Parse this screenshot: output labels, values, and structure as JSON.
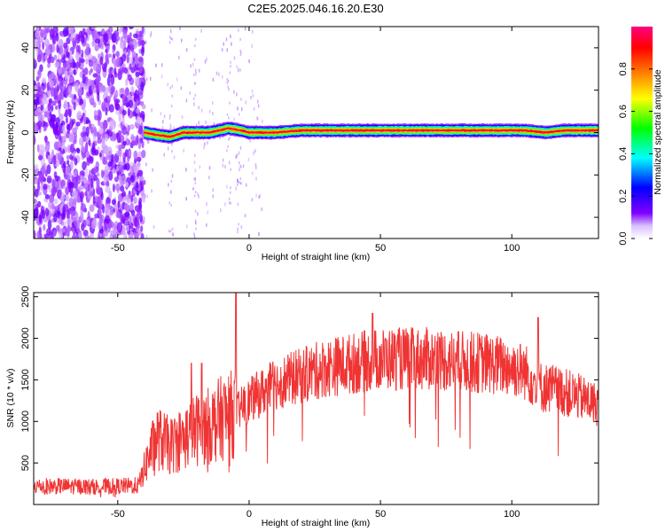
{
  "title": "C2E5.2025.046.16.20.E30",
  "chart_data": [
    {
      "type": "heatmap",
      "title": "C2E5.2025.046.16.20.E30",
      "xlabel": "Height of straight line (km)",
      "ylabel": "Frequency (Hz)",
      "xlim": [
        -82,
        133
      ],
      "ylim": [
        -50,
        50
      ],
      "xticks": [
        -50,
        0,
        50,
        100
      ],
      "yticks": [
        -40,
        -20,
        0,
        20,
        40
      ],
      "grid": false,
      "colorbar": {
        "label": "Normalized spectral amplitude",
        "range": [
          0.0,
          1.0
        ],
        "ticks": [
          "0.0",
          "0.2",
          "0.4",
          "0.6",
          "0.8"
        ],
        "colormap": [
          "#ffffff",
          "#8000ff",
          "#0000ff",
          "#00ffff",
          "#00ff00",
          "#ffff00",
          "#ff8000",
          "#ff0000",
          "#ff0080"
        ]
      },
      "noise_region_x": [
        -82,
        -40
      ],
      "signal_band": {
        "x_start": -40,
        "x_end": 133,
        "center_freq_hz": [
          [
            -40,
            0
          ],
          [
            -36,
            -1
          ],
          [
            -30,
            -2
          ],
          [
            -25,
            0
          ],
          [
            -15,
            0
          ],
          [
            -8,
            2
          ],
          [
            -3,
            1
          ],
          [
            0,
            0
          ],
          [
            10,
            0
          ],
          [
            20,
            1
          ],
          [
            40,
            1
          ],
          [
            60,
            1
          ],
          [
            80,
            1
          ],
          [
            100,
            1
          ],
          [
            105,
            1
          ],
          [
            113,
            0
          ],
          [
            120,
            1
          ],
          [
            133,
            1
          ]
        ],
        "peak_amplitude": 0.95
      },
      "spikes_x": [
        -30,
        -21,
        -8,
        -4
      ]
    },
    {
      "type": "line",
      "xlabel": "Height of straight line (km)",
      "ylabel": "SNR (10 * v/v)",
      "xlim": [
        -82,
        133
      ],
      "ylim": [
        0,
        2550
      ],
      "xticks": [
        -50,
        0,
        50,
        100
      ],
      "yticks": [
        500,
        1000,
        1500,
        2000,
        2500
      ],
      "grid": false,
      "color": "#f03434",
      "series": [
        {
          "x": [
            -82,
            -70,
            -60,
            -50,
            -42,
            -38,
            -35,
            -30,
            -25,
            -20,
            -15,
            -10,
            -5,
            0,
            5,
            10,
            20,
            30,
            40,
            50,
            60,
            70,
            80,
            90,
            100,
            105,
            108,
            112,
            115,
            120,
            125,
            133
          ],
          "values": [
            220,
            220,
            215,
            220,
            230,
            600,
            800,
            700,
            800,
            900,
            950,
            1050,
            1100,
            1250,
            1350,
            1450,
            1550,
            1650,
            1700,
            1750,
            1750,
            1750,
            1720,
            1700,
            1650,
            1600,
            1500,
            1400,
            1400,
            1350,
            1300,
            1200
          ],
          "spikes": [
            {
              "x": -22,
              "value": 1700
            },
            {
              "x": -18,
              "value": 1700
            },
            {
              "x": -5,
              "value": 2550
            },
            {
              "x": 47,
              "value": 2300
            },
            {
              "x": 110,
              "value": 2250
            }
          ]
        }
      ]
    }
  ]
}
